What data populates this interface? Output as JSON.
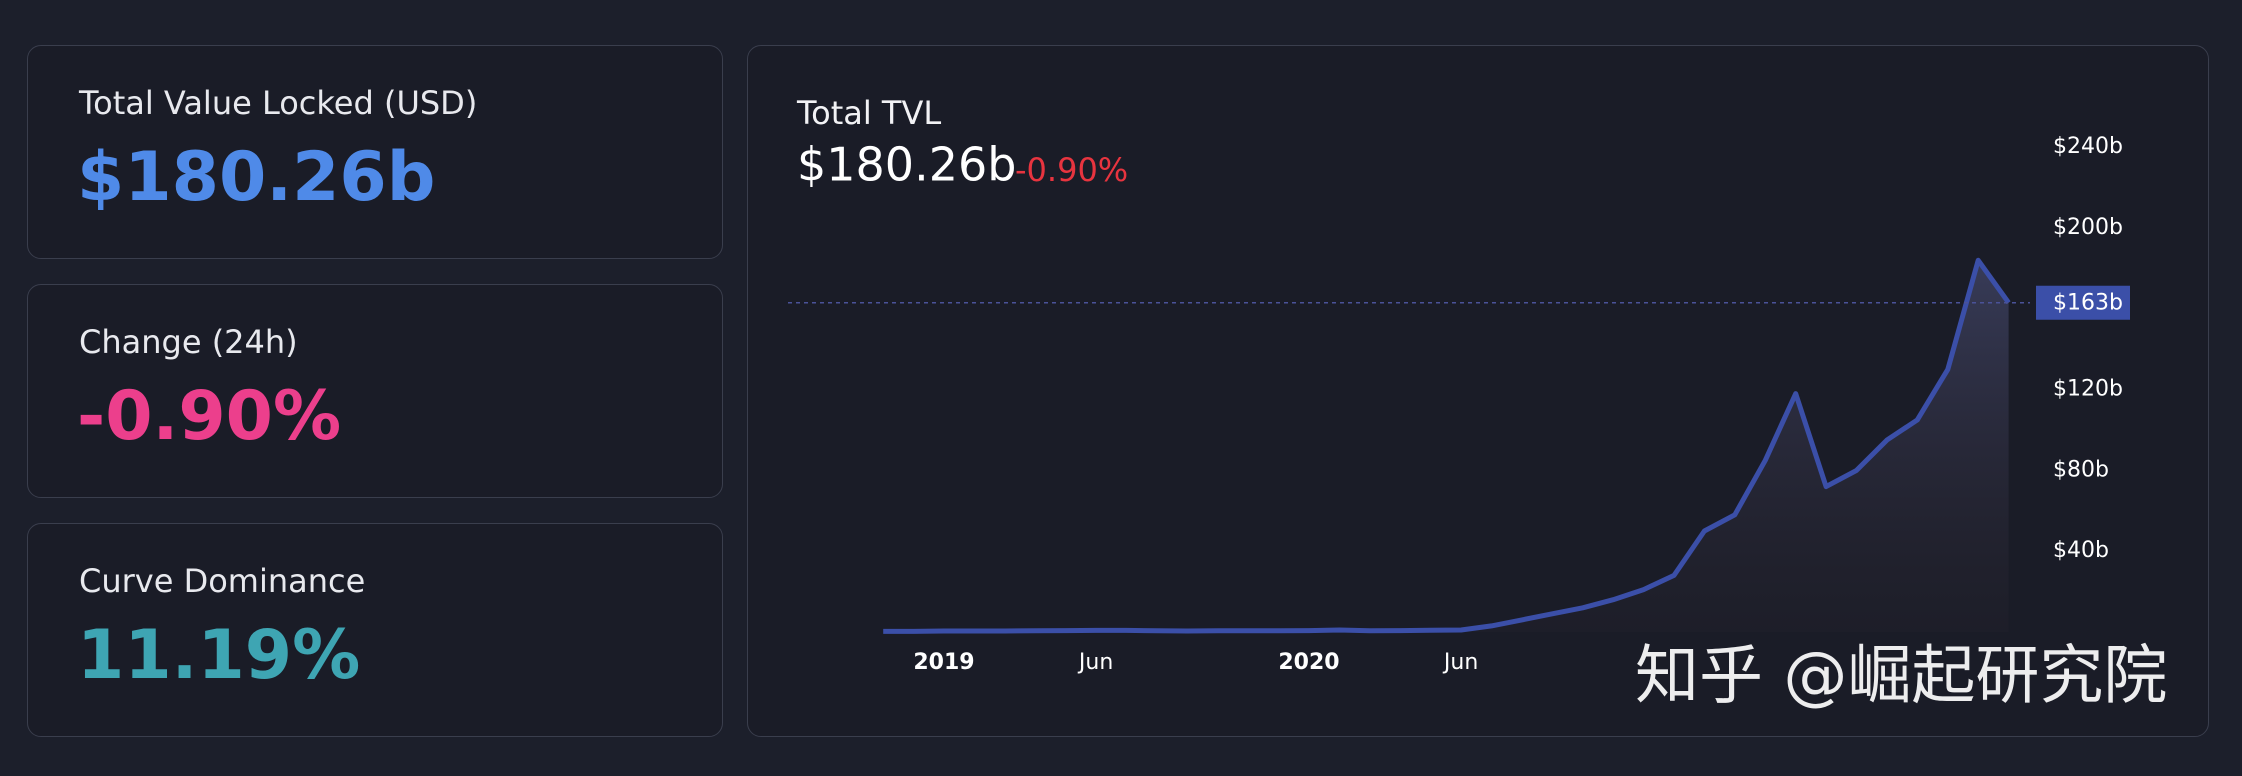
{
  "cards": [
    {
      "label": "Total Value Locked (USD)",
      "value": "$180.26b",
      "color": "#4f8ae8"
    },
    {
      "label": "Change (24h)",
      "value": "-0.90%",
      "color": "#ec3f8c"
    },
    {
      "label": "Curve Dominance",
      "value": "11.19%",
      "color": "#3ea5b3"
    }
  ],
  "chart_data": {
    "type": "line",
    "title": "Total TVL",
    "value": "$180.26b",
    "change": "-0.90%",
    "x": [
      "2018-11",
      "2018-12",
      "2019-01",
      "2019-02",
      "2019-03",
      "2019-04",
      "2019-05",
      "2019-06",
      "2019-07",
      "2019-08",
      "2019-09",
      "2019-10",
      "2019-11",
      "2019-12",
      "2020-01",
      "2020-02",
      "2020-03",
      "2020-04",
      "2020-05",
      "2020-06",
      "2020-07",
      "2020-08",
      "2020-09",
      "2020-10",
      "2020-11",
      "2020-12",
      "2021-01",
      "2021-02",
      "2021-03",
      "2021-04",
      "2021-05",
      "2021-06",
      "2021-07",
      "2021-08",
      "2021-09",
      "2021-10",
      "2021-11",
      "2021-12"
    ],
    "values": [
      0.3,
      0.3,
      0.5,
      0.5,
      0.5,
      0.6,
      0.7,
      0.8,
      0.8,
      0.6,
      0.5,
      0.6,
      0.6,
      0.6,
      0.7,
      1,
      0.6,
      0.7,
      0.9,
      1,
      3,
      6,
      9,
      12,
      16,
      21,
      28,
      50,
      58,
      85,
      118,
      72,
      80,
      95,
      105,
      130,
      184,
      163
    ],
    "color": "#3b4fa8",
    "current": {
      "value": 163,
      "label": "$163b"
    },
    "ylim": [
      0,
      250
    ],
    "yticks": [
      {
        "value": 40,
        "label": "$40b"
      },
      {
        "value": 80,
        "label": "$80b"
      },
      {
        "value": 120,
        "label": "$120b"
      },
      {
        "value": 200,
        "label": "$200b"
      },
      {
        "value": 240,
        "label": "$240b"
      }
    ],
    "xticks": [
      {
        "value": "2019-01",
        "label": "2019"
      },
      {
        "value": "2019-06",
        "label": "Jun"
      },
      {
        "value": "2020-01",
        "label": "2020"
      },
      {
        "value": "2020-06",
        "label": "Jun"
      }
    ]
  },
  "watermark": "知乎 @崛起研究院"
}
